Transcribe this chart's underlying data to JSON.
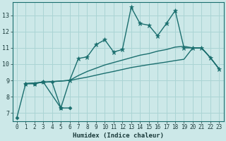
{
  "xlabel": "Humidex (Indice chaleur)",
  "bg_color": "#cce8e8",
  "grid_color": "#aad4d4",
  "line_color": "#1a6e6e",
  "xlim": [
    -0.5,
    23.5
  ],
  "ylim": [
    6.5,
    13.8
  ],
  "yticks": [
    7,
    8,
    9,
    10,
    11,
    12,
    13
  ],
  "xticks": [
    0,
    1,
    2,
    3,
    4,
    5,
    6,
    7,
    8,
    9,
    10,
    11,
    12,
    13,
    14,
    15,
    16,
    17,
    18,
    19,
    20,
    21,
    22,
    23
  ],
  "series": [
    {
      "x": [
        0,
        1,
        2,
        3,
        4,
        5,
        6
      ],
      "y": [
        6.7,
        8.8,
        8.8,
        8.9,
        8.9,
        7.3,
        7.3
      ],
      "marker": "D",
      "markersize": 2.5,
      "linewidth": 1.0
    },
    {
      "x": [
        1,
        2,
        3,
        5,
        6,
        7,
        8,
        9,
        10,
        11,
        12,
        13,
        14,
        15,
        16,
        17,
        18,
        19,
        20,
        21,
        22,
        23
      ],
      "y": [
        8.8,
        8.8,
        8.9,
        7.3,
        9.0,
        10.35,
        10.45,
        11.2,
        11.5,
        10.75,
        10.9,
        13.5,
        12.5,
        12.4,
        11.75,
        12.5,
        13.3,
        11.0,
        11.0,
        11.0,
        10.4,
        9.7
      ],
      "marker": "*",
      "markersize": 4.5,
      "linewidth": 1.0
    },
    {
      "x": [
        1,
        6,
        7,
        8,
        9,
        10,
        11,
        12,
        13,
        14,
        15,
        16,
        17,
        18,
        19,
        20,
        21,
        22,
        23
      ],
      "y": [
        8.8,
        9.0,
        9.3,
        9.55,
        9.75,
        9.95,
        10.1,
        10.25,
        10.4,
        10.55,
        10.65,
        10.8,
        10.9,
        11.05,
        11.1,
        11.0,
        11.0,
        10.4,
        9.7
      ],
      "marker": null,
      "markersize": 0,
      "linewidth": 1.0
    },
    {
      "x": [
        1,
        6,
        7,
        8,
        9,
        10,
        11,
        12,
        13,
        14,
        15,
        16,
        17,
        18,
        19,
        20,
        21,
        22,
        23
      ],
      "y": [
        8.8,
        9.0,
        9.1,
        9.2,
        9.32,
        9.44,
        9.55,
        9.67,
        9.79,
        9.88,
        9.97,
        10.05,
        10.13,
        10.22,
        10.3,
        11.0,
        11.0,
        10.4,
        9.7
      ],
      "marker": null,
      "markersize": 0,
      "linewidth": 1.0
    }
  ]
}
